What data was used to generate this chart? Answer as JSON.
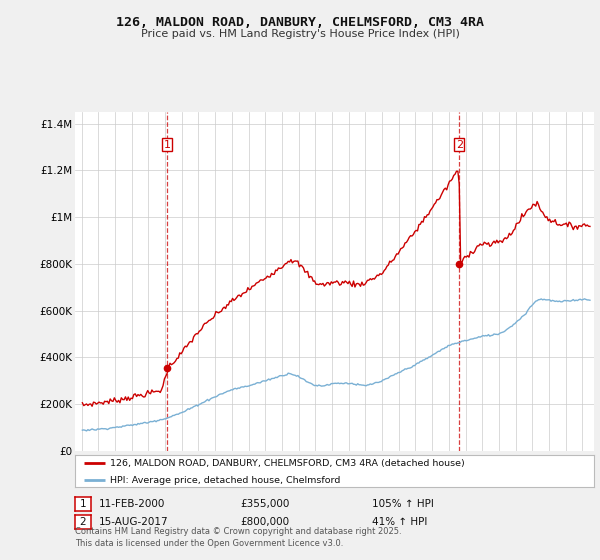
{
  "title": "126, MALDON ROAD, DANBURY, CHELMSFORD, CM3 4RA",
  "subtitle": "Price paid vs. HM Land Registry's House Price Index (HPI)",
  "legend_line1": "126, MALDON ROAD, DANBURY, CHELMSFORD, CM3 4RA (detached house)",
  "legend_line2": "HPI: Average price, detached house, Chelmsford",
  "annotation1_label": "1",
  "annotation1_date": "11-FEB-2000",
  "annotation1_price": "£355,000",
  "annotation1_hpi": "105% ↑ HPI",
  "annotation2_label": "2",
  "annotation2_date": "15-AUG-2017",
  "annotation2_price": "£800,000",
  "annotation2_hpi": "41% ↑ HPI",
  "footer": "Contains HM Land Registry data © Crown copyright and database right 2025.\nThis data is licensed under the Open Government Licence v3.0.",
  "red_color": "#cc0000",
  "blue_color": "#7ab0d4",
  "background_color": "#f0f0f0",
  "plot_bg_color": "#ffffff",
  "ylim": [
    0,
    1450000
  ],
  "yticks": [
    0,
    200000,
    400000,
    600000,
    800000,
    1000000,
    1200000,
    1400000
  ],
  "ytick_labels": [
    "£0",
    "£200K",
    "£400K",
    "£600K",
    "£800K",
    "£1M",
    "£1.2M",
    "£1.4M"
  ]
}
